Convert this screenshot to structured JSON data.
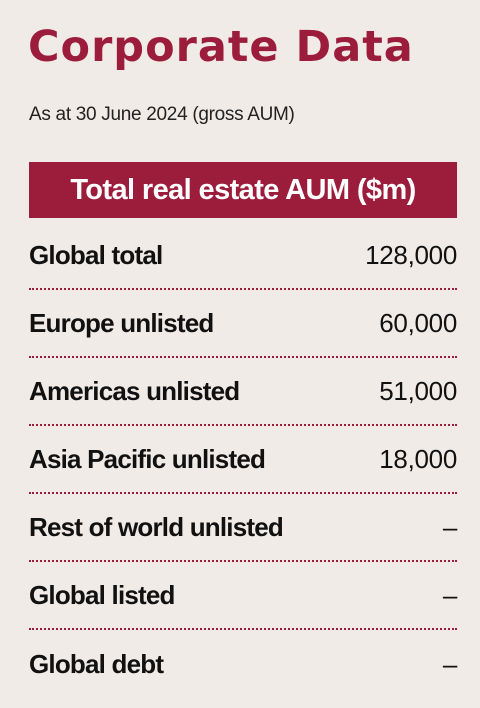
{
  "header": {
    "title": "Corporate Data",
    "subtitle": "As at 30 June 2024 (gross AUM)"
  },
  "table": {
    "banner": "Total real estate AUM ($m)",
    "rows": [
      {
        "label": "Global total",
        "value": "128,000"
      },
      {
        "label": "Europe unlisted",
        "value": "60,000"
      },
      {
        "label": "Americas unlisted",
        "value": "51,000"
      },
      {
        "label": "Asia Pacific unlisted",
        "value": "18,000"
      },
      {
        "label": "Rest of world unlisted",
        "value": "–"
      },
      {
        "label": "Global listed",
        "value": "–"
      },
      {
        "label": "Global debt",
        "value": "–"
      }
    ]
  },
  "colors": {
    "accent": "#9c1c3b",
    "background": "#f1ebe7"
  }
}
